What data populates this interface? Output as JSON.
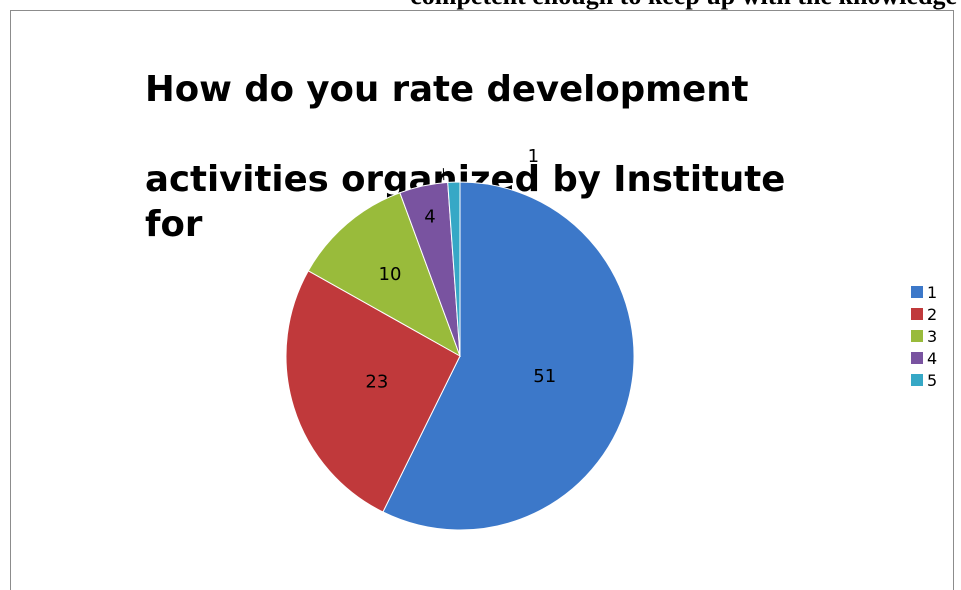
{
  "page": {
    "cut_text": "competent enough to keep up with the knowledge"
  },
  "chart_data": {
    "type": "pie",
    "title": "How do you rate development activities organized by Institute for",
    "title_lines": [
      "How do you rate development",
      "activities organized by Institute for"
    ],
    "categories": [
      "1",
      "2",
      "3",
      "4",
      "5"
    ],
    "values": [
      51,
      23,
      10,
      4,
      1
    ],
    "data_labels": [
      "51",
      "23",
      "10",
      "4",
      "1"
    ],
    "colors": [
      "#3c78c9",
      "#c0393b",
      "#99bb3b",
      "#7953a0",
      "#36a8c6"
    ],
    "legend_position": "right"
  }
}
